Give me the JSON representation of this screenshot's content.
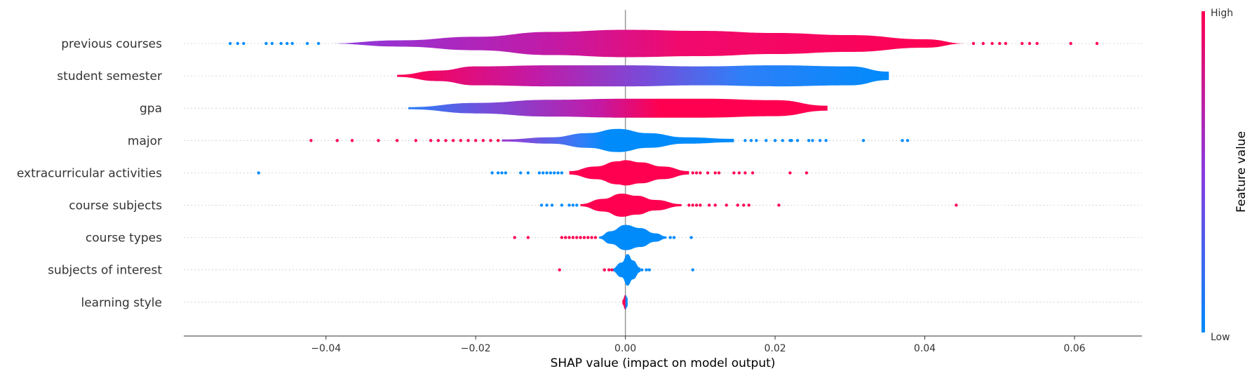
{
  "chart_data": {
    "type": "violin",
    "xlabel": "SHAP value (impact on model output)",
    "xlim": [
      -0.059,
      0.069
    ],
    "x_ticks": [
      -0.04,
      -0.02,
      0.0,
      0.02,
      0.04,
      0.06
    ],
    "x_tick_labels": [
      "−0.04",
      "−0.02",
      "0.00",
      "0.02",
      "0.04",
      "0.06"
    ],
    "features": [
      {
        "name": "previous courses",
        "body": [
          [
            -0.04,
            0.0
          ],
          [
            -0.03,
            0.15
          ],
          [
            -0.02,
            0.32
          ],
          [
            -0.01,
            0.55
          ],
          [
            0.0,
            0.65
          ],
          [
            0.01,
            0.6
          ],
          [
            0.02,
            0.5
          ],
          [
            0.03,
            0.4
          ],
          [
            0.04,
            0.2
          ],
          [
            0.0455,
            0.0
          ]
        ],
        "color_stops": [
          [
            0,
            "#8a3ae0"
          ],
          [
            0.35,
            "#c21aa6"
          ],
          [
            0.55,
            "#f00a6e"
          ],
          [
            1,
            "#ff0050"
          ]
        ],
        "outliers": [
          [
            -0.0528,
            "low"
          ],
          [
            -0.0518,
            "low"
          ],
          [
            -0.051,
            "low"
          ],
          [
            -0.048,
            "low"
          ],
          [
            -0.0472,
            "low"
          ],
          [
            -0.046,
            "low"
          ],
          [
            -0.0452,
            "low"
          ],
          [
            -0.0445,
            "low"
          ],
          [
            -0.0425,
            "low"
          ],
          [
            -0.041,
            "low"
          ],
          [
            0.0465,
            "high"
          ],
          [
            0.0478,
            "high"
          ],
          [
            0.049,
            "high"
          ],
          [
            0.05,
            "high"
          ],
          [
            0.0508,
            "high"
          ],
          [
            0.053,
            "high"
          ],
          [
            0.054,
            "high"
          ],
          [
            0.055,
            "high"
          ],
          [
            0.0595,
            "high"
          ],
          [
            0.063,
            "high"
          ]
        ]
      },
      {
        "name": "student semester",
        "body": [
          [
            -0.0305,
            0.05
          ],
          [
            -0.025,
            0.25
          ],
          [
            -0.02,
            0.45
          ],
          [
            -0.01,
            0.5
          ],
          [
            0.0,
            0.5
          ],
          [
            0.01,
            0.45
          ],
          [
            0.02,
            0.5
          ],
          [
            0.03,
            0.45
          ],
          [
            0.0352,
            0.2
          ]
        ],
        "color_stops": [
          [
            0,
            "#ff0050"
          ],
          [
            0.28,
            "#c21aa6"
          ],
          [
            0.5,
            "#7a4ad8"
          ],
          [
            0.7,
            "#2f7ff8"
          ],
          [
            1,
            "#008bfb"
          ]
        ],
        "outliers": []
      },
      {
        "name": "gpa",
        "body": [
          [
            -0.029,
            0.05
          ],
          [
            -0.02,
            0.25
          ],
          [
            -0.01,
            0.4
          ],
          [
            0.0,
            0.45
          ],
          [
            0.01,
            0.45
          ],
          [
            0.02,
            0.38
          ],
          [
            0.027,
            0.12
          ]
        ],
        "color_stops": [
          [
            0,
            "#2a7ff8"
          ],
          [
            0.2,
            "#7a4ad8"
          ],
          [
            0.45,
            "#c21aa6"
          ],
          [
            0.6,
            "#ff0050"
          ],
          [
            1,
            "#ff0050"
          ]
        ],
        "outliers": []
      },
      {
        "name": "major",
        "body": [
          [
            -0.0165,
            0.05
          ],
          [
            -0.01,
            0.15
          ],
          [
            -0.005,
            0.35
          ],
          [
            -0.001,
            0.55
          ],
          [
            0.003,
            0.35
          ],
          [
            0.008,
            0.15
          ],
          [
            0.0145,
            0.08
          ]
        ],
        "color_stops": [
          [
            0,
            "#9b38d0"
          ],
          [
            0.35,
            "#2f7ff8"
          ],
          [
            0.45,
            "#008bfb"
          ],
          [
            1,
            "#008bfb"
          ]
        ],
        "outliers": [
          [
            -0.042,
            "high"
          ],
          [
            -0.0385,
            "high"
          ],
          [
            -0.0365,
            "high"
          ],
          [
            -0.033,
            "high"
          ],
          [
            -0.0305,
            "high"
          ],
          [
            -0.028,
            "high"
          ],
          [
            -0.026,
            "high"
          ],
          [
            -0.025,
            "high"
          ],
          [
            -0.024,
            "high"
          ],
          [
            -0.023,
            "high"
          ],
          [
            -0.022,
            "high"
          ],
          [
            -0.021,
            "high"
          ],
          [
            -0.02,
            "high"
          ],
          [
            -0.019,
            "high"
          ],
          [
            -0.018,
            "high"
          ],
          [
            -0.017,
            "high"
          ],
          [
            0.016,
            "low"
          ],
          [
            0.0168,
            "low"
          ],
          [
            0.0175,
            "low"
          ],
          [
            0.0188,
            "low"
          ],
          [
            0.02,
            "low"
          ],
          [
            0.021,
            "low"
          ],
          [
            0.022,
            "low"
          ],
          [
            0.0222,
            "low"
          ],
          [
            0.023,
            "low"
          ],
          [
            0.0245,
            "low"
          ],
          [
            0.025,
            "low"
          ],
          [
            0.026,
            "low"
          ],
          [
            0.0268,
            "low"
          ],
          [
            0.0318,
            "low"
          ],
          [
            0.037,
            "low"
          ],
          [
            0.0377,
            "low"
          ]
        ]
      },
      {
        "name": "extracurricular activities",
        "body": [
          [
            -0.0075,
            0.08
          ],
          [
            -0.004,
            0.3
          ],
          [
            -0.001,
            0.55
          ],
          [
            0.0,
            0.6
          ],
          [
            0.002,
            0.5
          ],
          [
            0.005,
            0.3
          ],
          [
            0.0085,
            0.08
          ]
        ],
        "color_stops": [
          [
            0,
            "#ff0050"
          ],
          [
            1,
            "#ff0050"
          ]
        ],
        "outliers": [
          [
            -0.049,
            "low"
          ],
          [
            -0.0178,
            "low"
          ],
          [
            -0.017,
            "low"
          ],
          [
            -0.0165,
            "low"
          ],
          [
            -0.016,
            "low"
          ],
          [
            -0.014,
            "low"
          ],
          [
            -0.013,
            "low"
          ],
          [
            -0.0115,
            "low"
          ],
          [
            -0.011,
            "low"
          ],
          [
            -0.0105,
            "low"
          ],
          [
            -0.01,
            "low"
          ],
          [
            -0.0095,
            "low"
          ],
          [
            -0.009,
            "low"
          ],
          [
            -0.0085,
            "low"
          ],
          [
            0.009,
            "high"
          ],
          [
            0.0095,
            "high"
          ],
          [
            0.01,
            "high"
          ],
          [
            0.011,
            "high"
          ],
          [
            0.012,
            "high"
          ],
          [
            0.0125,
            "high"
          ],
          [
            0.0145,
            "high"
          ],
          [
            0.0152,
            "high"
          ],
          [
            0.016,
            "high"
          ],
          [
            0.017,
            "high"
          ],
          [
            0.022,
            "high"
          ],
          [
            0.0242,
            "high"
          ]
        ]
      },
      {
        "name": "course subjects",
        "body": [
          [
            -0.006,
            0.05
          ],
          [
            -0.003,
            0.3
          ],
          [
            -0.0005,
            0.55
          ],
          [
            0.0015,
            0.45
          ],
          [
            0.004,
            0.25
          ],
          [
            0.0075,
            0.05
          ]
        ],
        "color_stops": [
          [
            0,
            "#ff0050"
          ],
          [
            1,
            "#ff0050"
          ]
        ],
        "outliers": [
          [
            -0.0112,
            "low"
          ],
          [
            -0.0105,
            "low"
          ],
          [
            -0.0098,
            "low"
          ],
          [
            -0.0085,
            "low"
          ],
          [
            -0.0075,
            "low"
          ],
          [
            -0.007,
            "low"
          ],
          [
            -0.0065,
            "low"
          ],
          [
            0.0085,
            "high"
          ],
          [
            0.009,
            "high"
          ],
          [
            0.0095,
            "high"
          ],
          [
            0.01,
            "high"
          ],
          [
            0.0112,
            "high"
          ],
          [
            0.012,
            "high"
          ],
          [
            0.0135,
            "high"
          ],
          [
            0.015,
            "high"
          ],
          [
            0.0158,
            "high"
          ],
          [
            0.0165,
            "high"
          ],
          [
            0.0205,
            "high"
          ],
          [
            0.0442,
            "high"
          ]
        ]
      },
      {
        "name": "course types",
        "body": [
          [
            -0.0035,
            0.05
          ],
          [
            -0.002,
            0.3
          ],
          [
            0.0,
            0.6
          ],
          [
            0.002,
            0.45
          ],
          [
            0.004,
            0.2
          ],
          [
            0.0055,
            0.05
          ]
        ],
        "color_stops": [
          [
            0,
            "#008bfb"
          ],
          [
            1,
            "#008bfb"
          ]
        ],
        "outliers": [
          [
            -0.0148,
            "high"
          ],
          [
            -0.013,
            "high"
          ],
          [
            -0.0085,
            "high"
          ],
          [
            -0.008,
            "high"
          ],
          [
            -0.0075,
            "high"
          ],
          [
            -0.007,
            "high"
          ],
          [
            -0.0065,
            "high"
          ],
          [
            -0.006,
            "high"
          ],
          [
            -0.0055,
            "high"
          ],
          [
            -0.005,
            "high"
          ],
          [
            -0.0045,
            "high"
          ],
          [
            -0.004,
            "high"
          ],
          [
            0.006,
            "low"
          ],
          [
            0.0065,
            "low"
          ],
          [
            0.0088,
            "low"
          ]
        ]
      },
      {
        "name": "subjects of interest",
        "body": [
          [
            -0.0018,
            0.05
          ],
          [
            -0.0005,
            0.35
          ],
          [
            0.0003,
            0.75
          ],
          [
            0.001,
            0.45
          ],
          [
            0.002,
            0.1
          ]
        ],
        "color_stops": [
          [
            0,
            "#008bfb"
          ],
          [
            1,
            "#008bfb"
          ]
        ],
        "outliers": [
          [
            -0.0088,
            "high"
          ],
          [
            -0.0028,
            "high"
          ],
          [
            -0.0022,
            "high"
          ],
          [
            -0.0018,
            "high"
          ],
          [
            0.0022,
            "low"
          ],
          [
            0.0028,
            "low"
          ],
          [
            0.0032,
            "low"
          ],
          [
            0.009,
            "low"
          ]
        ]
      },
      {
        "name": "learning style",
        "body": [
          [
            -0.0004,
            0.1
          ],
          [
            0.0,
            0.35
          ],
          [
            0.0003,
            0.2
          ]
        ],
        "color_stops": [
          [
            0,
            "#ff0050"
          ],
          [
            0.55,
            "#ff0050"
          ],
          [
            0.6,
            "#008bfb"
          ],
          [
            1,
            "#008bfb"
          ]
        ],
        "outliers": []
      }
    ],
    "colorbar": {
      "label": "Feature value",
      "high_label": "High",
      "low_label": "Low",
      "high_color": "#ff0052",
      "low_color": "#008bfb"
    }
  }
}
